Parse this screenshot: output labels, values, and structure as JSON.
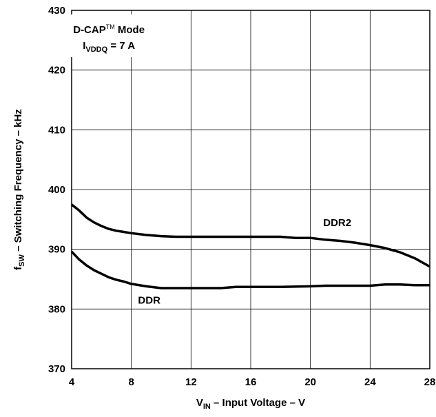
{
  "chart_data": {
    "type": "line",
    "xlabel": {
      "main": "V",
      "sub": "IN",
      "rest": " – Input Voltage – V"
    },
    "ylabel": {
      "main": "f",
      "sub": "SW",
      "rest": " – Switching Frequency – kHz"
    },
    "xlim": [
      4,
      28
    ],
    "ylim": [
      370,
      430
    ],
    "xticks": [
      4,
      8,
      12,
      16,
      20,
      24,
      28
    ],
    "yticks": [
      370,
      380,
      390,
      400,
      410,
      420,
      430
    ],
    "grid": true,
    "annotation": {
      "line1_main": "D-CAP",
      "line1_sup": "TM",
      "line1_rest": "  Mode",
      "line2_main": "I",
      "line2_sub": "VDDQ",
      "line2_rest": " = 7 A"
    },
    "series": [
      {
        "name": "DDR2",
        "x": [
          4,
          4.5,
          5,
          5.5,
          6,
          6.5,
          7,
          7.5,
          8,
          9,
          10,
          11,
          12,
          14,
          16,
          18,
          19,
          20,
          21,
          22,
          23,
          24,
          25,
          26,
          27,
          28
        ],
        "y": [
          397.5,
          396.5,
          395.3,
          394.5,
          393.9,
          393.4,
          393.1,
          392.9,
          392.7,
          392.4,
          392.2,
          392.1,
          392.1,
          392.1,
          392.1,
          392.1,
          391.9,
          391.9,
          391.6,
          391.4,
          391.1,
          390.7,
          390.2,
          389.5,
          388.5,
          387.1
        ]
      },
      {
        "name": "DDR",
        "x": [
          4,
          4.5,
          5,
          5.5,
          6,
          6.5,
          7,
          7.5,
          8,
          9,
          10,
          11,
          12,
          14,
          15,
          16,
          18,
          20,
          21,
          22,
          24,
          25,
          26,
          27,
          28
        ],
        "y": [
          389.6,
          388.3,
          387.3,
          386.5,
          385.9,
          385.3,
          384.9,
          384.6,
          384.2,
          383.8,
          383.5,
          383.5,
          383.5,
          383.5,
          383.7,
          383.7,
          383.7,
          383.8,
          383.9,
          383.9,
          383.9,
          384.1,
          384.1,
          384.0,
          384.0
        ]
      }
    ]
  }
}
